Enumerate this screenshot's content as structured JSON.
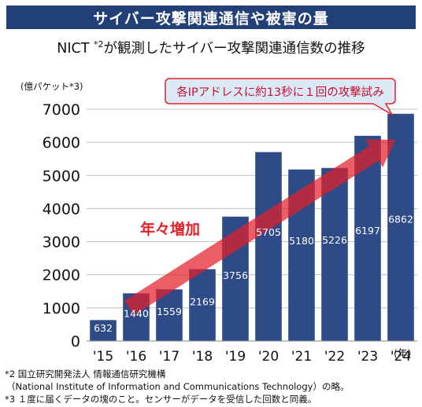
{
  "header": {
    "banner_title": "サイバー攻撃関連通信や被害の量"
  },
  "subtitle": {
    "prefix": "NICT ",
    "sup": "*2",
    "rest": "が観測したサイバー攻撃関連通信数の推移"
  },
  "callout_text": "各IPアドレスに約13秒に１回の攻撃試み",
  "arrow_label": "年々増加",
  "footnotes": {
    "note2_line1": "*2 国立研究開発法人 情報通信研究機構",
    "note2_line2": "（National Institute of Information and Communications Technology）の略。",
    "note3": "*3 １度に届くデータの塊のこと。センサーがデータを受信した回数と同義。"
  },
  "colors": {
    "banner": "#223f78",
    "bar": "#2e4a87",
    "arrow": "#e5202a",
    "callout_border": "#e5202a",
    "callout_fill": "#dbe9f7",
    "callout_text": "#c8102e"
  },
  "chart_data": {
    "type": "bar",
    "categories": [
      "'15",
      "'16",
      "'17",
      "'18",
      "'19",
      "'20",
      "'21",
      "'22",
      "'23",
      "'24"
    ],
    "values": [
      632,
      1440,
      1559,
      2169,
      3756,
      5705,
      5180,
      5226,
      6197,
      6862
    ],
    "ylabel": "(億パケット*3)",
    "x_unit": "(年)",
    "ylim": [
      0,
      7000
    ],
    "yticks": [
      0,
      1000,
      2000,
      3000,
      4000,
      5000,
      6000,
      7000
    ],
    "grid": true,
    "value_labels": [
      "632",
      "1440",
      "1559",
      "2169",
      "3756",
      "5705",
      "5180",
      "5226",
      "6197",
      "6862"
    ]
  }
}
